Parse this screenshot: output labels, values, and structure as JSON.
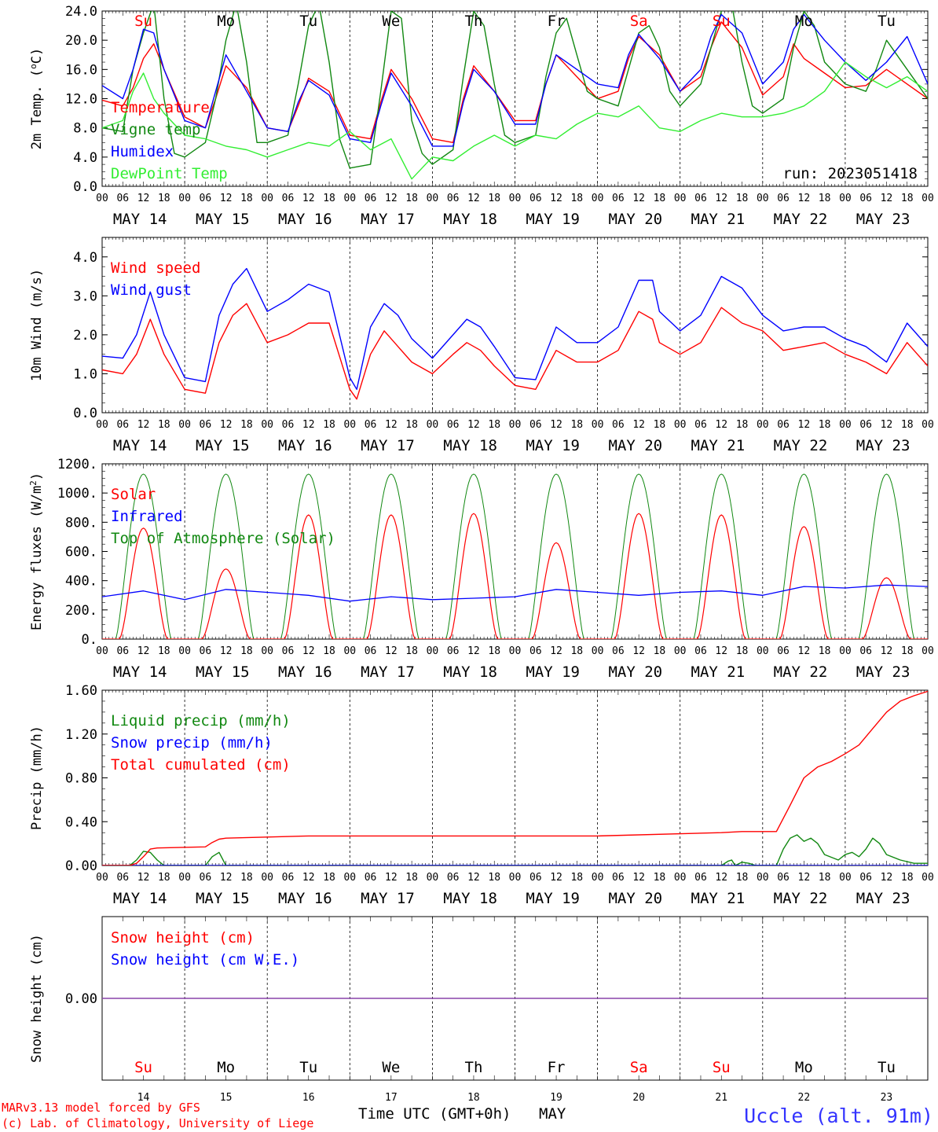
{
  "footer": {
    "credit_line1": "MARv3.13 model forced by GFS",
    "credit_line2": "(c) Lab. of Climatology, University of Liege",
    "time_axis_label": "Time UTC (GMT+0h)",
    "month": "MAY",
    "station": "Uccle (alt. 91m)"
  },
  "run_label": "run: 2023051418",
  "days": [
    {
      "date": "MAY 14",
      "num": "14",
      "abbr": "Su",
      "weekend": true
    },
    {
      "date": "MAY 15",
      "num": "15",
      "abbr": "Mo",
      "weekend": false
    },
    {
      "date": "MAY 16",
      "num": "16",
      "abbr": "Tu",
      "weekend": false
    },
    {
      "date": "MAY 17",
      "num": "17",
      "abbr": "We",
      "weekend": false
    },
    {
      "date": "MAY 18",
      "num": "18",
      "abbr": "Th",
      "weekend": false
    },
    {
      "date": "MAY 19",
      "num": "19",
      "abbr": "Fr",
      "weekend": false
    },
    {
      "date": "MAY 20",
      "num": "20",
      "abbr": "Sa",
      "weekend": true
    },
    {
      "date": "MAY 21",
      "num": "21",
      "abbr": "Su",
      "weekend": true
    },
    {
      "date": "MAY 22",
      "num": "22",
      "abbr": "Mo",
      "weekend": false
    },
    {
      "date": "MAY 23",
      "num": "23",
      "abbr": "Tu",
      "weekend": false
    }
  ],
  "hour_ticks": [
    "00",
    "06",
    "12",
    "18"
  ],
  "colors": {
    "red": "#ff0000",
    "green": "#118811",
    "blue": "#0000ff",
    "lightgreen": "#33ee33",
    "purple": "#8844aa",
    "weekend": "#ff0000"
  },
  "chart_data": [
    {
      "id": "temp",
      "type": "line",
      "ylabel": "2m Temp. (oC)",
      "ylim": [
        0,
        24
      ],
      "yticks": [
        0,
        4,
        8,
        12,
        16,
        20,
        24
      ],
      "ytick_labels": [
        "0.0",
        "4.0",
        "8.0",
        "12.0",
        "16.0",
        "20.0",
        "24.0"
      ],
      "x_unit": "hours since MAY 14 00 UTC",
      "series": [
        {
          "name": "Temperature",
          "color": "red",
          "x": [
            0,
            6,
            9,
            12,
            15,
            18,
            24,
            30,
            33,
            36,
            42,
            48,
            54,
            57,
            60,
            66,
            72,
            78,
            81,
            84,
            90,
            96,
            102,
            105,
            108,
            114,
            120,
            126,
            129,
            132,
            138,
            144,
            150,
            153,
            156,
            162,
            168,
            174,
            177,
            180,
            186,
            192,
            198,
            201,
            204,
            210,
            216,
            222,
            228,
            234,
            240
          ],
          "y": [
            11.8,
            11,
            13.5,
            17.5,
            19.5,
            16,
            9.5,
            8,
            12,
            16.5,
            13.5,
            8,
            7.5,
            11,
            14.8,
            13,
            7,
            6.5,
            11.5,
            16,
            12,
            6.5,
            6,
            12,
            16.5,
            13,
            9,
            9,
            14,
            18,
            15,
            12,
            13,
            17.5,
            20.5,
            18,
            13,
            15,
            19,
            22.5,
            19,
            12.5,
            15,
            19.5,
            17.5,
            15.5,
            13.5,
            13.8,
            16,
            14,
            12
          ]
        },
        {
          "name": "Vigne temp",
          "color": "green",
          "x": [
            0,
            6,
            9,
            12,
            15,
            18,
            21,
            24,
            30,
            33,
            36,
            39,
            42,
            45,
            48,
            54,
            57,
            60,
            63,
            66,
            69,
            72,
            78,
            81,
            84,
            87,
            90,
            93,
            96,
            102,
            105,
            108,
            111,
            114,
            117,
            120,
            126,
            129,
            132,
            135,
            138,
            141,
            144,
            150,
            153,
            156,
            159,
            162,
            165,
            168,
            174,
            177,
            180,
            183,
            186,
            189,
            192,
            198,
            201,
            204,
            207,
            210,
            216,
            222,
            225,
            228,
            234,
            240
          ],
          "y": [
            8,
            7.5,
            16,
            21,
            25,
            12,
            4.5,
            4,
            6,
            12,
            20,
            25,
            17,
            6,
            6,
            7,
            14,
            22,
            25,
            17,
            6.5,
            2.5,
            3,
            13,
            24,
            23,
            9,
            4.5,
            3,
            5,
            15,
            24,
            22,
            14,
            7,
            6,
            7,
            15,
            21,
            23,
            18,
            13,
            12,
            11,
            16,
            21,
            22,
            19,
            13,
            11,
            14,
            19,
            24,
            25,
            17,
            11,
            10,
            12,
            19,
            24,
            22,
            17,
            14,
            13,
            16,
            20,
            16,
            12
          ]
        },
        {
          "name": "Humidex",
          "color": "blue",
          "x": [
            0,
            6,
            9,
            12,
            15,
            18,
            24,
            30,
            33,
            36,
            42,
            48,
            54,
            57,
            60,
            66,
            72,
            78,
            81,
            84,
            90,
            96,
            102,
            105,
            108,
            114,
            120,
            126,
            129,
            132,
            138,
            144,
            150,
            153,
            156,
            162,
            168,
            174,
            177,
            180,
            186,
            192,
            198,
            201,
            204,
            210,
            216,
            222,
            228,
            234,
            240
          ],
          "y": [
            13.8,
            12,
            16,
            21.5,
            21,
            16,
            9,
            8,
            13,
            18,
            13,
            8,
            7.5,
            11.5,
            14.5,
            12.5,
            6.5,
            6,
            11,
            15.5,
            11,
            5.5,
            5.5,
            11.5,
            16,
            13,
            8.5,
            8.5,
            14,
            18,
            16,
            14,
            13.5,
            18,
            20.8,
            17.5,
            13,
            16,
            20.5,
            23.5,
            21,
            14,
            17,
            21.5,
            23.5,
            20,
            17,
            14.5,
            17,
            20.5,
            14
          ]
        },
        {
          "name": "DewPoint Temp",
          "color": "lightgreen",
          "x": [
            0,
            6,
            9,
            12,
            15,
            18,
            24,
            30,
            36,
            42,
            48,
            54,
            60,
            66,
            72,
            78,
            84,
            90,
            96,
            102,
            108,
            114,
            120,
            126,
            132,
            138,
            144,
            150,
            156,
            162,
            168,
            174,
            180,
            186,
            192,
            198,
            204,
            210,
            216,
            222,
            228,
            234,
            240
          ],
          "y": [
            8,
            9,
            13,
            15.5,
            12,
            10,
            7,
            6.5,
            5.5,
            5,
            4,
            5,
            6,
            5.5,
            7.5,
            5,
            6.5,
            1,
            4,
            3.5,
            5.5,
            7,
            5.5,
            7,
            6.5,
            8.5,
            10,
            9.5,
            11,
            8,
            7.5,
            9,
            10,
            9.5,
            9.5,
            10,
            11,
            13,
            17,
            15,
            13.5,
            15,
            13
          ]
        }
      ],
      "legend": [
        "Temperature",
        "Vigne temp",
        "Humidex",
        "DewPoint Temp"
      ],
      "legend_placement": "top-left"
    },
    {
      "id": "wind",
      "type": "line",
      "ylabel": "10m Wind (m/s)",
      "ylim": [
        0,
        4.5
      ],
      "yticks": [
        0,
        1,
        2,
        3,
        4
      ],
      "ytick_labels": [
        "0.0",
        "1.0",
        "2.0",
        "3.0",
        "4.0"
      ],
      "x_unit": "hours since MAY 14 00 UTC",
      "series": [
        {
          "name": "Wind speed",
          "color": "red",
          "x": [
            0,
            6,
            10,
            14,
            18,
            24,
            30,
            34,
            38,
            42,
            48,
            54,
            60,
            66,
            72,
            74,
            78,
            82,
            86,
            90,
            96,
            102,
            106,
            110,
            114,
            120,
            126,
            132,
            138,
            144,
            150,
            156,
            160,
            162,
            168,
            174,
            180,
            186,
            192,
            198,
            204,
            210,
            216,
            222,
            228,
            234,
            240
          ],
          "y": [
            1.1,
            1,
            1.5,
            2.4,
            1.5,
            0.6,
            0.5,
            1.8,
            2.5,
            2.8,
            1.8,
            2,
            2.3,
            2.3,
            0.6,
            0.35,
            1.5,
            2.1,
            1.7,
            1.3,
            1,
            1.5,
            1.8,
            1.6,
            1.2,
            0.7,
            0.6,
            1.6,
            1.3,
            1.3,
            1.6,
            2.6,
            2.4,
            1.8,
            1.5,
            1.8,
            2.7,
            2.3,
            2.1,
            1.6,
            1.7,
            1.8,
            1.5,
            1.3,
            1,
            1.8,
            1.2
          ]
        },
        {
          "name": "Wind gust",
          "color": "blue",
          "x": [
            0,
            6,
            10,
            14,
            18,
            24,
            30,
            34,
            38,
            42,
            48,
            54,
            60,
            66,
            72,
            74,
            78,
            82,
            86,
            90,
            96,
            102,
            106,
            110,
            114,
            120,
            126,
            132,
            138,
            144,
            150,
            156,
            160,
            162,
            168,
            174,
            180,
            186,
            192,
            198,
            204,
            210,
            216,
            222,
            228,
            234,
            240
          ],
          "y": [
            1.45,
            1.4,
            2,
            3.1,
            2,
            0.9,
            0.8,
            2.5,
            3.3,
            3.7,
            2.6,
            2.9,
            3.3,
            3.1,
            0.9,
            0.6,
            2.2,
            2.8,
            2.5,
            1.9,
            1.4,
            2,
            2.4,
            2.2,
            1.7,
            0.9,
            0.85,
            2.2,
            1.8,
            1.8,
            2.2,
            3.4,
            3.4,
            2.6,
            2.1,
            2.5,
            3.5,
            3.2,
            2.5,
            2.1,
            2.2,
            2.2,
            1.9,
            1.7,
            1.3,
            2.3,
            1.7
          ]
        }
      ],
      "legend": [
        "Wind speed",
        "Wind gust"
      ],
      "legend_placement": "top-left"
    },
    {
      "id": "flux",
      "type": "line",
      "ylabel": "Energy fluxes (W/m2)",
      "ylim": [
        0,
        1200
      ],
      "yticks": [
        0,
        200,
        400,
        600,
        800,
        1000,
        1200
      ],
      "ytick_labels": [
        "0.",
        "200.",
        "400.",
        "600.",
        "800.",
        "1000.",
        "1200."
      ],
      "x_unit": "hours since MAY 14 00 UTC",
      "toa_peak": 1130,
      "solar_peaks": [
        760,
        480,
        850,
        850,
        860,
        660,
        860,
        850,
        770,
        420
      ],
      "series": [
        {
          "name": "Solar",
          "color": "red",
          "from": "solar_peaks"
        },
        {
          "name": "Infrared",
          "color": "blue",
          "x": [
            0,
            12,
            24,
            36,
            48,
            60,
            72,
            84,
            96,
            108,
            120,
            132,
            144,
            156,
            168,
            180,
            192,
            204,
            216,
            228,
            240
          ],
          "y": [
            290,
            330,
            270,
            340,
            320,
            300,
            260,
            290,
            270,
            280,
            290,
            340,
            320,
            300,
            320,
            330,
            300,
            360,
            350,
            370,
            360
          ]
        },
        {
          "name": "Top of Atmosphere (Solar)",
          "color": "green",
          "from": "toa_peak"
        }
      ],
      "legend": [
        "Solar",
        "Infrared",
        "Top of Atmosphere (Solar)"
      ],
      "legend_placement": "top-left"
    },
    {
      "id": "precip",
      "type": "line",
      "ylabel": "Precip (mm/h)",
      "ylim": [
        0,
        1.6
      ],
      "yticks": [
        0,
        0.4,
        0.8,
        1.2,
        1.6
      ],
      "ytick_labels": [
        "0.00",
        "0.40",
        "0.80",
        "1.20",
        "1.60"
      ],
      "x_unit": "hours since MAY 14 00 UTC",
      "series": [
        {
          "name": "Liquid precip (mm/h)",
          "color": "green",
          "x": [
            0,
            8,
            10,
            12,
            14,
            16,
            18,
            30,
            32,
            34,
            36,
            180,
            182,
            183,
            184,
            186,
            188,
            190,
            196,
            198,
            200,
            202,
            204,
            206,
            208,
            210,
            214,
            216,
            218,
            220,
            222,
            224,
            226,
            228,
            232,
            236,
            240
          ],
          "y": [
            0,
            0,
            0.05,
            0.13,
            0.12,
            0.05,
            0,
            0,
            0.08,
            0.12,
            0,
            0,
            0.04,
            0.05,
            0,
            0.03,
            0.02,
            0,
            0,
            0.15,
            0.25,
            0.28,
            0.22,
            0.25,
            0.2,
            0.1,
            0.05,
            0.1,
            0.12,
            0.08,
            0.15,
            0.25,
            0.2,
            0.1,
            0.05,
            0.02,
            0.02
          ]
        },
        {
          "name": "Snow precip (mm/h)",
          "color": "blue",
          "x": [
            0,
            240
          ],
          "y": [
            0,
            0
          ]
        },
        {
          "name": "Total cumulated (cm)",
          "color": "red",
          "x": [
            0,
            8,
            10,
            12,
            14,
            16,
            30,
            32,
            34,
            36,
            48,
            60,
            84,
            120,
            144,
            180,
            186,
            196,
            200,
            204,
            208,
            212,
            216,
            220,
            224,
            228,
            232,
            236,
            240
          ],
          "y": [
            0,
            0,
            0.02,
            0.08,
            0.15,
            0.16,
            0.17,
            0.21,
            0.24,
            0.25,
            0.26,
            0.27,
            0.27,
            0.27,
            0.27,
            0.3,
            0.31,
            0.31,
            0.55,
            0.8,
            0.9,
            0.95,
            1.02,
            1.1,
            1.25,
            1.4,
            1.5,
            1.55,
            1.59
          ]
        }
      ],
      "legend": [
        "Liquid precip (mm/h)",
        "Snow precip (mm/h)",
        "Total cumulated (cm)"
      ],
      "legend_placement": "top-left"
    },
    {
      "id": "snow",
      "type": "line",
      "ylabel": "Snow height (cm)",
      "ylim": [
        -1,
        1
      ],
      "yticks": [
        0
      ],
      "ytick_labels": [
        "0.00"
      ],
      "x_unit": "hours since MAY 14 00 UTC",
      "series": [
        {
          "name": "Snow height (cm)",
          "color": "red",
          "x": [
            0,
            240
          ],
          "y": [
            0,
            0
          ]
        },
        {
          "name": "Snow height (cm W.E.)",
          "color": "blue",
          "x": [
            0,
            240
          ],
          "y": [
            0,
            0
          ]
        }
      ],
      "legend": [
        "Snow height (cm)",
        "Snow height (cm W.E.)"
      ],
      "legend_placement": "top-left"
    }
  ]
}
